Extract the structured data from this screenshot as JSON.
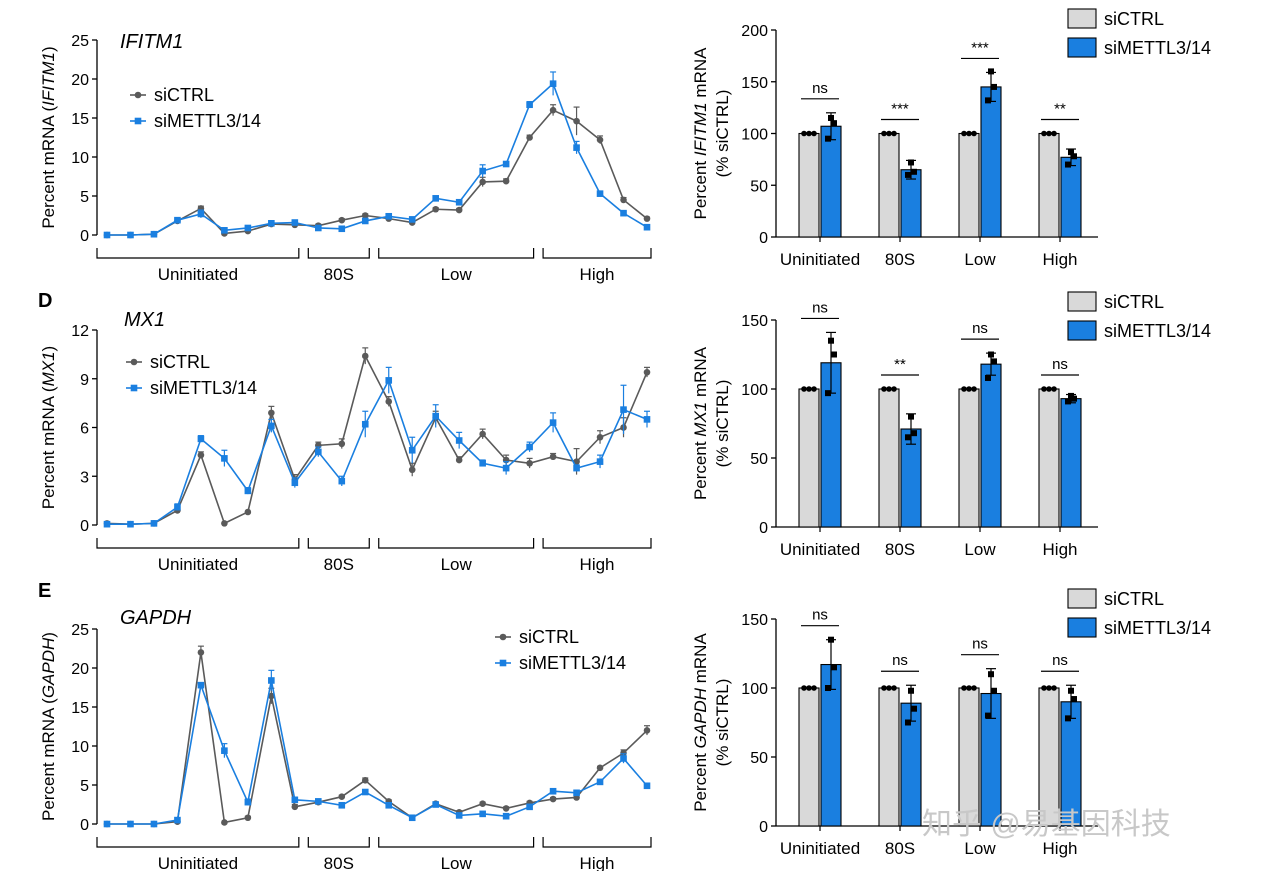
{
  "panel_labels": [
    "D",
    "E"
  ],
  "legend": {
    "ctrl": "siCTRL",
    "kd": "siMETTL3/14",
    "ctrl_color": "#5a5a5a",
    "kd_color": "#1a7fe0",
    "bar_ctrl_fill": "#d9d9d9",
    "bar_kd_fill": "#1a7fe0"
  },
  "watermark": "知乎 @易基因科技",
  "chart_data": [
    {
      "type": "line",
      "gene": "IFITM1",
      "ylabel_prefix": "Percent mRNA (",
      "ylabel_gene": "IFITM1",
      "ylabel_suffix": ")",
      "ylim": [
        0,
        25
      ],
      "yticks": [
        0,
        5,
        10,
        15,
        20,
        25
      ],
      "fractions": [
        "Uninitiated",
        "80S",
        "Low",
        "High"
      ],
      "series": [
        {
          "name": "siCTRL",
          "values": [
            0,
            0,
            0.1,
            1.8,
            3.4,
            0.2,
            0.5,
            1.4,
            1.3,
            1.2,
            1.9,
            2.5,
            2.1,
            1.6,
            3.3,
            3.2,
            6.8,
            6.9,
            12.5,
            16.0,
            14.6,
            12.2,
            4.5,
            2.1
          ],
          "errors": [
            0,
            0,
            0.1,
            0.2,
            0.3,
            0.2,
            0.2,
            0.2,
            0.2,
            0.2,
            0.2,
            0.2,
            0.2,
            0.2,
            0.2,
            0.2,
            0.6,
            0.3,
            0.3,
            0.7,
            1.8,
            0.5,
            0.3,
            0.2
          ]
        },
        {
          "name": "siMETTL3/14",
          "values": [
            0,
            0,
            0.1,
            1.9,
            2.7,
            0.6,
            0.9,
            1.5,
            1.6,
            0.9,
            0.8,
            1.8,
            2.4,
            2.0,
            4.7,
            4.2,
            8.2,
            9.1,
            16.7,
            19.4,
            11.2,
            5.3,
            2.8,
            1.0
          ],
          "errors": [
            0,
            0,
            0.1,
            0.2,
            0.5,
            0.2,
            0.2,
            0.2,
            0.2,
            0.2,
            0.2,
            0.2,
            0.3,
            0.3,
            0.3,
            0.3,
            0.8,
            0.3,
            0.4,
            1.5,
            0.8,
            0.3,
            0.2,
            0.2
          ]
        }
      ]
    },
    {
      "type": "bar",
      "gene": "IFITM1",
      "ylabel_line1_prefix": "Percent ",
      "ylabel_line1_gene": "IFITM1",
      "ylabel_line1_suffix": " mRNA",
      "ylabel_line2": "(% siCTRL)",
      "ylim": [
        0,
        200
      ],
      "yticks": [
        0,
        50,
        100,
        150,
        200
      ],
      "categories": [
        "Uninitiated",
        "80S",
        "Low",
        "High"
      ],
      "ctrl": [
        100,
        100,
        100,
        100
      ],
      "kd": [
        107,
        65,
        145,
        77
      ],
      "kd_err": [
        13,
        9,
        14,
        8
      ],
      "kd_points": [
        [
          95,
          110,
          115
        ],
        [
          60,
          63,
          72
        ],
        [
          132,
          145,
          160
        ],
        [
          70,
          78,
          82
        ]
      ],
      "significance": [
        "ns",
        "***",
        "***",
        "**"
      ]
    },
    {
      "type": "line",
      "gene": "MX1",
      "ylabel_prefix": "Percent mRNA (",
      "ylabel_gene": "MX1",
      "ylabel_suffix": ")",
      "ylim": [
        0,
        12
      ],
      "yticks": [
        0,
        3,
        6,
        9,
        12
      ],
      "fractions": [
        "Uninitiated",
        "80S",
        "Low",
        "High"
      ],
      "series": [
        {
          "name": "siCTRL",
          "values": [
            0.1,
            0.05,
            0.1,
            0.9,
            4.3,
            0.1,
            0.8,
            6.9,
            2.8,
            4.9,
            5.0,
            10.4,
            7.6,
            3.4,
            6.6,
            4.0,
            5.6,
            4.0,
            3.8,
            4.2,
            3.9,
            5.4,
            6.0,
            9.4
          ],
          "errors": [
            0.05,
            0.05,
            0.05,
            0.2,
            0.2,
            0.05,
            0.1,
            0.4,
            0.3,
            0.2,
            0.3,
            0.5,
            0.3,
            0.4,
            0.4,
            0.2,
            0.3,
            0.3,
            0.3,
            0.2,
            0.8,
            0.4,
            0.6,
            0.3
          ]
        },
        {
          "name": "siMETTL3/14",
          "values": [
            0.05,
            0.05,
            0.1,
            1.1,
            5.3,
            4.1,
            2.1,
            6.1,
            2.6,
            4.5,
            2.7,
            6.2,
            8.9,
            4.6,
            6.7,
            5.2,
            3.8,
            3.5,
            4.8,
            6.3,
            3.5,
            3.9,
            7.1,
            6.5
          ],
          "errors": [
            0.05,
            0.05,
            0.05,
            0.2,
            0.2,
            0.5,
            0.2,
            0.4,
            0.3,
            0.3,
            0.3,
            0.8,
            0.8,
            0.8,
            0.7,
            0.5,
            0.2,
            0.4,
            0.3,
            0.6,
            0.2,
            0.4,
            1.5,
            0.5
          ]
        }
      ]
    },
    {
      "type": "bar",
      "gene": "MX1",
      "ylabel_line1_prefix": "Percent ",
      "ylabel_line1_gene": "MX1",
      "ylabel_line1_suffix": " mRNA",
      "ylabel_line2": "(% siCTRL)",
      "ylim": [
        0,
        150
      ],
      "yticks": [
        0,
        50,
        100,
        150
      ],
      "categories": [
        "Uninitiated",
        "80S",
        "Low",
        "High"
      ],
      "ctrl": [
        100,
        100,
        100,
        100
      ],
      "kd": [
        119,
        71,
        118,
        93
      ],
      "kd_err": [
        22,
        11,
        8,
        3
      ],
      "kd_points": [
        [
          97,
          125,
          135
        ],
        [
          65,
          68,
          80
        ],
        [
          108,
          120,
          125
        ],
        [
          91,
          93,
          95
        ]
      ],
      "significance": [
        "ns",
        "**",
        "ns",
        "ns"
      ]
    },
    {
      "type": "line",
      "gene": "GAPDH",
      "ylabel_prefix": "Percent mRNA (",
      "ylabel_gene": "GAPDH",
      "ylabel_suffix": ")",
      "ylim": [
        0,
        25
      ],
      "yticks": [
        0,
        5,
        10,
        15,
        20,
        25
      ],
      "fractions": [
        "Uninitiated",
        "80S",
        "Low",
        "High"
      ],
      "series": [
        {
          "name": "siCTRL",
          "values": [
            0,
            0,
            0,
            0.3,
            22.0,
            0.2,
            0.8,
            16.4,
            2.2,
            2.8,
            3.5,
            5.6,
            2.9,
            0.8,
            2.6,
            1.5,
            2.6,
            2.0,
            2.7,
            3.2,
            3.4,
            7.2,
            9.1,
            12.0
          ],
          "errors": [
            0,
            0,
            0,
            0.1,
            0.8,
            0.1,
            0.2,
            1.0,
            0.3,
            0.2,
            0.2,
            0.3,
            0.2,
            0.2,
            0.2,
            0.2,
            0.2,
            0.2,
            0.2,
            0.2,
            0.3,
            0.2,
            0.4,
            0.6
          ]
        },
        {
          "name": "siMETTL3/14",
          "values": [
            0,
            0,
            0,
            0.5,
            17.8,
            9.4,
            2.8,
            18.4,
            3.1,
            2.9,
            2.4,
            4.1,
            2.4,
            0.8,
            2.5,
            1.1,
            1.3,
            1.0,
            2.2,
            4.2,
            4.0,
            5.4,
            8.4,
            4.9
          ],
          "errors": [
            0,
            0,
            0,
            0.1,
            0.3,
            0.9,
            0.4,
            1.3,
            0.3,
            0.2,
            0.2,
            0.3,
            0.2,
            0.2,
            0.2,
            0.2,
            0.2,
            0.2,
            0.2,
            0.3,
            0.3,
            0.3,
            0.6,
            0.3
          ]
        }
      ]
    },
    {
      "type": "bar",
      "gene": "GAPDH",
      "ylabel_line1_prefix": "Percent ",
      "ylabel_line1_gene": "GAPDH",
      "ylabel_line1_suffix": " mRNA",
      "ylabel_line2": "(% siCTRL)",
      "ylim": [
        0,
        150
      ],
      "yticks": [
        0,
        50,
        100,
        150
      ],
      "categories": [
        "Uninitiated",
        "80S",
        "Low",
        "High"
      ],
      "ctrl": [
        100,
        100,
        100,
        100
      ],
      "kd": [
        117,
        89,
        96,
        90
      ],
      "kd_err": [
        18,
        13,
        18,
        12
      ],
      "kd_points": [
        [
          100,
          115,
          135
        ],
        [
          75,
          85,
          98
        ],
        [
          80,
          98,
          110
        ],
        [
          78,
          92,
          98
        ]
      ],
      "significance": [
        "ns",
        "ns",
        "ns",
        "ns"
      ]
    }
  ]
}
